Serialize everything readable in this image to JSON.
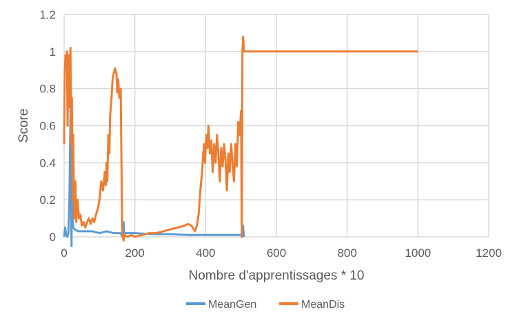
{
  "chart_data": {
    "type": "line",
    "title": "",
    "xlabel": "Nombre d'apprentissages * 10",
    "ylabel": "Score",
    "xlim": [
      0,
      1200
    ],
    "ylim": [
      0,
      1.2
    ],
    "x_ticks": [
      "0",
      "200",
      "400",
      "600",
      "800",
      "1000",
      "1200"
    ],
    "y_ticks": [
      "0",
      "0.2",
      "0.4",
      "0.6",
      "0.8",
      "1",
      "1.2"
    ],
    "grid": true,
    "legend": "bottom",
    "series": [
      {
        "name": "MeanGen",
        "color": "#5B9BD5",
        "points": [
          [
            0,
            0.0
          ],
          [
            3,
            0.05
          ],
          [
            6,
            0.01
          ],
          [
            9,
            0.0
          ],
          [
            12,
            0.02
          ],
          [
            15,
            0.2
          ],
          [
            17,
            0.5
          ],
          [
            19,
            0.8
          ],
          [
            20,
            0.1
          ],
          [
            21,
            -0.05
          ],
          [
            22,
            0.6
          ],
          [
            24,
            0.1
          ],
          [
            26,
            0.05
          ],
          [
            30,
            0.04
          ],
          [
            40,
            0.03
          ],
          [
            60,
            0.03
          ],
          [
            80,
            0.03
          ],
          [
            100,
            0.02
          ],
          [
            120,
            0.03
          ],
          [
            140,
            0.02
          ],
          [
            160,
            0.02
          ],
          [
            165,
            0.0
          ],
          [
            168,
            0.08
          ],
          [
            170,
            0.02
          ],
          [
            200,
            0.02
          ],
          [
            250,
            0.015
          ],
          [
            300,
            0.015
          ],
          [
            350,
            0.01
          ],
          [
            400,
            0.01
          ],
          [
            450,
            0.01
          ],
          [
            500,
            0.01
          ],
          [
            504,
            0.0
          ],
          [
            506,
            0.06
          ],
          [
            508,
            0.0
          ]
        ]
      },
      {
        "name": "MeanDis",
        "color": "#ED7D31",
        "points": [
          [
            0,
            0.5
          ],
          [
            2,
            0.9
          ],
          [
            4,
            0.98
          ],
          [
            6,
            0.95
          ],
          [
            8,
            1.0
          ],
          [
            10,
            0.6
          ],
          [
            12,
            0.98
          ],
          [
            14,
            0.9
          ],
          [
            16,
            0.7
          ],
          [
            18,
            1.02
          ],
          [
            20,
            0.5
          ],
          [
            22,
            0.75
          ],
          [
            24,
            0.2
          ],
          [
            26,
            0.55
          ],
          [
            28,
            0.1
          ],
          [
            30,
            0.2
          ],
          [
            32,
            0.3
          ],
          [
            34,
            0.08
          ],
          [
            38,
            0.2
          ],
          [
            42,
            0.1
          ],
          [
            46,
            0.12
          ],
          [
            50,
            0.06
          ],
          [
            55,
            0.08
          ],
          [
            60,
            0.05
          ],
          [
            65,
            0.08
          ],
          [
            70,
            0.1
          ],
          [
            75,
            0.07
          ],
          [
            80,
            0.1
          ],
          [
            85,
            0.08
          ],
          [
            90,
            0.12
          ],
          [
            95,
            0.15
          ],
          [
            100,
            0.2
          ],
          [
            105,
            0.3
          ],
          [
            110,
            0.25
          ],
          [
            115,
            0.35
          ],
          [
            118,
            0.28
          ],
          [
            120,
            0.4
          ],
          [
            122,
            0.3
          ],
          [
            125,
            0.55
          ],
          [
            128,
            0.45
          ],
          [
            130,
            0.65
          ],
          [
            134,
            0.75
          ],
          [
            137,
            0.85
          ],
          [
            140,
            0.88
          ],
          [
            144,
            0.91
          ],
          [
            148,
            0.88
          ],
          [
            150,
            0.78
          ],
          [
            153,
            0.85
          ],
          [
            156,
            0.75
          ],
          [
            160,
            0.8
          ],
          [
            162,
            0.4
          ],
          [
            164,
            0.05
          ],
          [
            166,
            0.0
          ],
          [
            168,
            -0.02
          ],
          [
            170,
            0.01
          ],
          [
            180,
            0.0
          ],
          [
            190,
            0.01
          ],
          [
            200,
            0.0
          ],
          [
            220,
            0.01
          ],
          [
            240,
            0.02
          ],
          [
            260,
            0.02
          ],
          [
            280,
            0.03
          ],
          [
            300,
            0.04
          ],
          [
            320,
            0.05
          ],
          [
            340,
            0.06
          ],
          [
            350,
            0.07
          ],
          [
            360,
            0.06
          ],
          [
            370,
            0.03
          ],
          [
            375,
            0.06
          ],
          [
            380,
            0.12
          ],
          [
            385,
            0.25
          ],
          [
            390,
            0.35
          ],
          [
            393,
            0.45
          ],
          [
            396,
            0.5
          ],
          [
            398,
            0.4
          ],
          [
            402,
            0.55
          ],
          [
            405,
            0.48
          ],
          [
            408,
            0.6
          ],
          [
            412,
            0.45
          ],
          [
            416,
            0.52
          ],
          [
            420,
            0.35
          ],
          [
            424,
            0.5
          ],
          [
            428,
            0.4
          ],
          [
            432,
            0.55
          ],
          [
            436,
            0.45
          ],
          [
            440,
            0.3
          ],
          [
            444,
            0.48
          ],
          [
            448,
            0.38
          ],
          [
            452,
            0.5
          ],
          [
            456,
            0.42
          ],
          [
            460,
            0.25
          ],
          [
            464,
            0.45
          ],
          [
            468,
            0.35
          ],
          [
            472,
            0.5
          ],
          [
            476,
            0.4
          ],
          [
            480,
            0.3
          ],
          [
            484,
            0.5
          ],
          [
            488,
            0.38
          ],
          [
            492,
            0.62
          ],
          [
            496,
            0.55
          ],
          [
            500,
            0.68
          ],
          [
            502,
            0.0
          ],
          [
            504,
            1.0
          ],
          [
            506,
            1.08
          ],
          [
            508,
            1.0
          ],
          [
            1000,
            1.0
          ]
        ]
      }
    ]
  }
}
